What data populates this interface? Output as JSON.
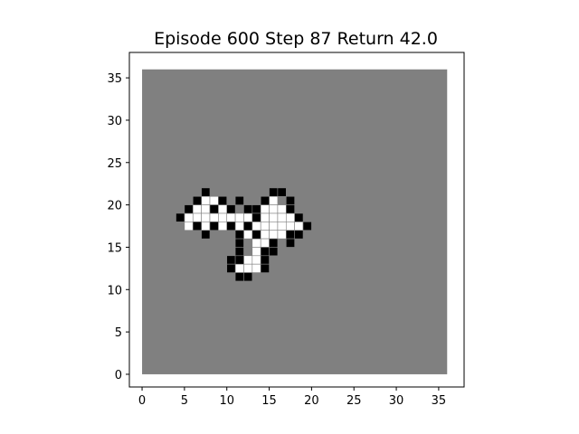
{
  "title": "Episode 600 Step 87 Return 42.0",
  "colors": {
    "background": "#808080",
    "explored": "#ffffff",
    "frontier": "#000000",
    "frame": "#000000",
    "cell_edge": "#808080"
  },
  "grid": {
    "size": 36
  },
  "axes": {
    "xlim": [
      -1.5,
      38
    ],
    "ylim": [
      -1.5,
      38
    ],
    "x_ticks": [
      0,
      5,
      10,
      15,
      20,
      25,
      30,
      35
    ],
    "y_ticks": [
      0,
      5,
      10,
      15,
      20,
      25,
      30,
      35
    ],
    "x_tick_labels": [
      "0",
      "5",
      "10",
      "15",
      "20",
      "25",
      "30",
      "35"
    ],
    "y_tick_labels": [
      "0",
      "5",
      "10",
      "15",
      "20",
      "25",
      "30",
      "35"
    ]
  },
  "cells": {
    "white": [
      [
        7,
        20
      ],
      [
        8,
        20
      ],
      [
        15,
        20
      ],
      [
        6,
        19
      ],
      [
        7,
        19
      ],
      [
        9,
        19
      ],
      [
        14,
        19
      ],
      [
        15,
        19
      ],
      [
        16,
        19
      ],
      [
        5,
        18
      ],
      [
        6,
        18
      ],
      [
        7,
        18
      ],
      [
        8,
        18
      ],
      [
        9,
        18
      ],
      [
        10,
        18
      ],
      [
        11,
        18
      ],
      [
        12,
        18
      ],
      [
        14,
        18
      ],
      [
        15,
        18
      ],
      [
        16,
        18
      ],
      [
        17,
        18
      ],
      [
        5,
        17
      ],
      [
        7,
        17
      ],
      [
        9,
        17
      ],
      [
        11,
        17
      ],
      [
        13,
        17
      ],
      [
        14,
        17
      ],
      [
        15,
        17
      ],
      [
        16,
        17
      ],
      [
        17,
        17
      ],
      [
        18,
        17
      ],
      [
        12,
        16
      ],
      [
        14,
        16
      ],
      [
        15,
        16
      ],
      [
        16,
        16
      ],
      [
        13,
        15
      ],
      [
        14,
        15
      ],
      [
        13,
        14
      ],
      [
        12,
        13
      ],
      [
        13,
        13
      ],
      [
        11,
        12
      ],
      [
        12,
        12
      ],
      [
        13,
        12
      ]
    ],
    "black": [
      [
        7,
        21
      ],
      [
        15,
        21
      ],
      [
        16,
        21
      ],
      [
        6,
        20
      ],
      [
        9,
        20
      ],
      [
        11,
        20
      ],
      [
        14,
        20
      ],
      [
        17,
        20
      ],
      [
        5,
        19
      ],
      [
        8,
        19
      ],
      [
        10,
        19
      ],
      [
        12,
        19
      ],
      [
        13,
        19
      ],
      [
        17,
        19
      ],
      [
        4,
        18
      ],
      [
        13,
        18
      ],
      [
        18,
        18
      ],
      [
        6,
        17
      ],
      [
        8,
        17
      ],
      [
        10,
        17
      ],
      [
        12,
        17
      ],
      [
        19,
        17
      ],
      [
        7,
        16
      ],
      [
        11,
        16
      ],
      [
        13,
        16
      ],
      [
        17,
        16
      ],
      [
        18,
        16
      ],
      [
        11,
        15
      ],
      [
        15,
        15
      ],
      [
        17,
        15
      ],
      [
        11,
        14
      ],
      [
        14,
        14
      ],
      [
        15,
        14
      ],
      [
        10,
        13
      ],
      [
        11,
        13
      ],
      [
        14,
        13
      ],
      [
        10,
        12
      ],
      [
        14,
        12
      ],
      [
        11,
        11
      ],
      [
        12,
        11
      ]
    ]
  }
}
